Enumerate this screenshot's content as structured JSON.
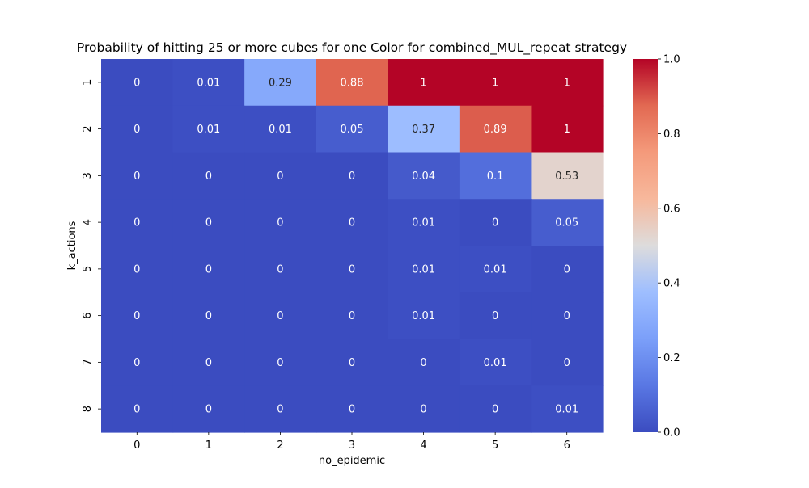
{
  "chart_data": {
    "type": "heatmap",
    "title": "Probability of hitting 25 or more cubes for one Color for combined_MUL_repeat strategy",
    "xlabel": "no_epidemic",
    "ylabel": "k_actions",
    "x_categories": [
      "0",
      "1",
      "2",
      "3",
      "4",
      "5",
      "6"
    ],
    "y_categories": [
      "1",
      "2",
      "3",
      "4",
      "5",
      "6",
      "7",
      "8"
    ],
    "values": [
      [
        0,
        0.01,
        0.29,
        0.88,
        1,
        1,
        1
      ],
      [
        0,
        0.01,
        0.01,
        0.05,
        0.37,
        0.89,
        1
      ],
      [
        0,
        0,
        0,
        0,
        0.04,
        0.1,
        0.53
      ],
      [
        0,
        0,
        0,
        0,
        0.01,
        0,
        0.05
      ],
      [
        0,
        0,
        0,
        0,
        0.01,
        0.01,
        0
      ],
      [
        0,
        0,
        0,
        0,
        0.01,
        0,
        0
      ],
      [
        0,
        0,
        0,
        0,
        0,
        0.01,
        0
      ],
      [
        0,
        0,
        0,
        0,
        0,
        0,
        0.01
      ]
    ],
    "colormap": "coolwarm",
    "vmin": 0,
    "vmax": 1,
    "colorbar_ticks": [
      "0.0",
      "0.2",
      "0.4",
      "0.6",
      "0.8",
      "1.0"
    ],
    "annotated": true,
    "grid": false
  }
}
